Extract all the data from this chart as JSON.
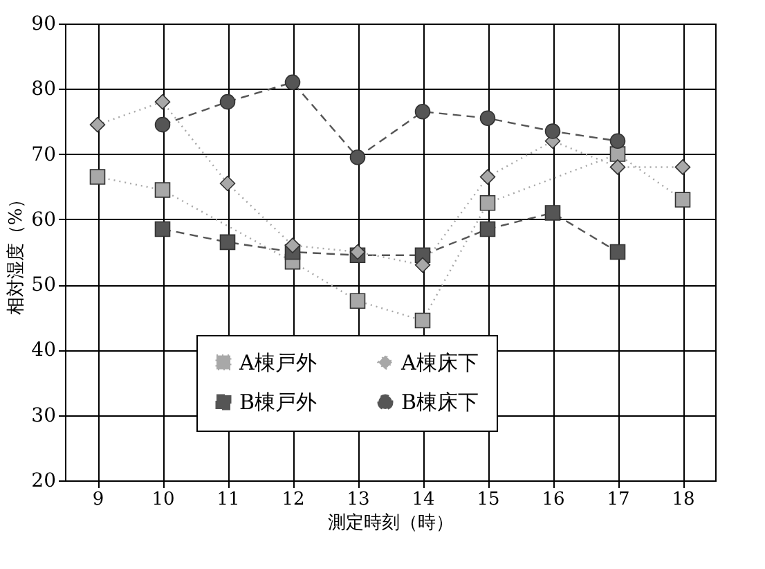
{
  "chart_data": {
    "type": "line",
    "xlabel": "測定時刻（時）",
    "ylabel": "相対湿度（%）",
    "categories": [
      "9",
      "10",
      "11",
      "12",
      "13",
      "14",
      "15",
      "16",
      "17",
      "18"
    ],
    "series": [
      {
        "name": "A棟戸外",
        "color": "#a8a8a8",
        "marker": "square",
        "line_style": "dotted",
        "values": [
          66.5,
          64.5,
          null,
          53.5,
          47.5,
          44.5,
          62.5,
          null,
          70,
          63
        ]
      },
      {
        "name": "B棟戸外",
        "color": "#555555",
        "marker": "square",
        "line_style": "dashed",
        "values": [
          null,
          58.5,
          56.5,
          55,
          54.5,
          54.5,
          58.5,
          61,
          55,
          null
        ]
      },
      {
        "name": "A棟床下",
        "color": "#a8a8a8",
        "marker": "diamond",
        "line_style": "dotted",
        "values": [
          74.5,
          78,
          65.5,
          56,
          55,
          53,
          66.5,
          72,
          68,
          68
        ]
      },
      {
        "name": "B棟床下",
        "color": "#555555",
        "marker": "circle",
        "line_style": "dashed",
        "values": [
          null,
          74.5,
          78,
          81,
          69.5,
          76.5,
          75.5,
          73.5,
          72,
          null
        ]
      }
    ],
    "ylim": [
      20,
      90
    ],
    "yticks": [
      20,
      30,
      40,
      50,
      60,
      70,
      80,
      90
    ],
    "grid": true,
    "legend": "bottom"
  }
}
